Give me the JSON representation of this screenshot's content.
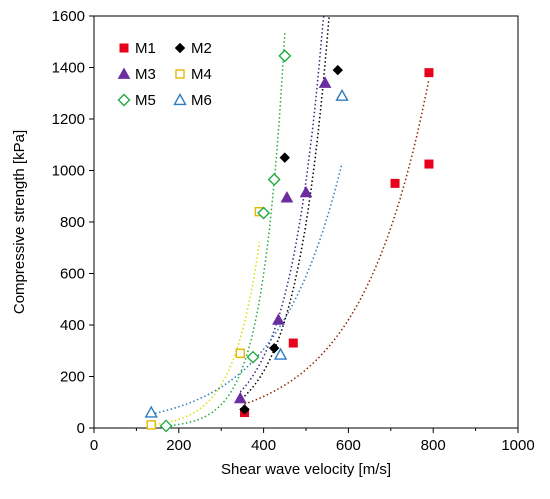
{
  "chart_data": {
    "type": "scatter",
    "title": "",
    "xlabel": "Shear wave velocity [m/s]",
    "ylabel": "Compressive strength [kPa]",
    "xlim": [
      0,
      1000
    ],
    "ylim": [
      0,
      1600
    ],
    "x_ticks": [
      "0",
      "200",
      "400",
      "600",
      "800",
      "1000"
    ],
    "y_ticks": [
      "0",
      "200",
      "400",
      "600",
      "800",
      "1000",
      "1200",
      "1400",
      "1600"
    ],
    "grid": false,
    "legend_position": "top-left",
    "trendline_style": "dotted exponential",
    "series": [
      {
        "name": "M1",
        "marker": "square",
        "filled": true,
        "color": "#e8001c",
        "trend_color": "#8b2500",
        "points": [
          [
            355,
            60
          ],
          [
            470,
            330
          ],
          [
            710,
            950
          ],
          [
            790,
            1380
          ],
          [
            790,
            1025
          ]
        ]
      },
      {
        "name": "M2",
        "marker": "diamond",
        "filled": true,
        "color": "#000000",
        "trend_color": "#000000",
        "points": [
          [
            355,
            72
          ],
          [
            425,
            310
          ],
          [
            450,
            1050
          ],
          [
            575,
            1390
          ]
        ]
      },
      {
        "name": "M3",
        "marker": "triangle",
        "filled": true,
        "color": "#6a2ea0",
        "trend_color": "#4b1f80",
        "points": [
          [
            345,
            115
          ],
          [
            435,
            420
          ],
          [
            455,
            895
          ],
          [
            500,
            915
          ],
          [
            545,
            1340
          ]
        ]
      },
      {
        "name": "M4",
        "marker": "square",
        "filled": false,
        "color": "#e8b800",
        "trend_color": "#d6e000",
        "points": [
          [
            135,
            12
          ],
          [
            345,
            290
          ],
          [
            390,
            840
          ]
        ]
      },
      {
        "name": "M5",
        "marker": "diamond",
        "filled": false,
        "color": "#22aa44",
        "trend_color": "#22aa44",
        "points": [
          [
            170,
            8
          ],
          [
            375,
            275
          ],
          [
            400,
            835
          ],
          [
            425,
            965
          ],
          [
            450,
            1445
          ]
        ]
      },
      {
        "name": "M6",
        "marker": "triangle",
        "filled": false,
        "color": "#2e7cc0",
        "trend_color": "#2e7cc0",
        "points": [
          [
            135,
            60
          ],
          [
            440,
            285
          ],
          [
            585,
            1290
          ]
        ]
      }
    ]
  }
}
